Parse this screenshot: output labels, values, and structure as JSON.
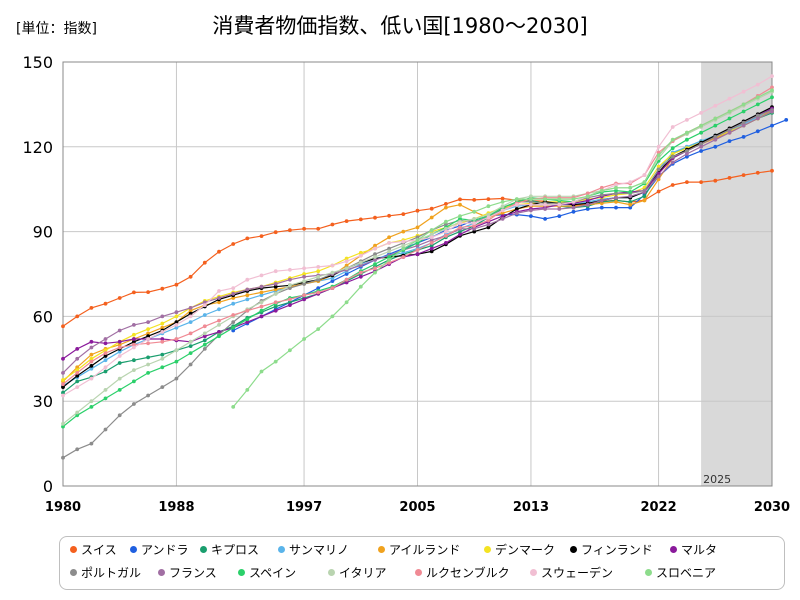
{
  "header": {
    "unit": "[単位：指数]",
    "title": "消費者物価指数、低い国[1980～2030]"
  },
  "chart_data": {
    "type": "line",
    "title": "消費者物価指数、低い国[1980～2030]",
    "xlabel": "",
    "ylabel": "[単位：指数]",
    "xlim": [
      1980,
      2030
    ],
    "ylim": [
      0,
      150
    ],
    "x_ticks": [
      "1980",
      "1988",
      "1997",
      "2005",
      "2013",
      "2022",
      "2030"
    ],
    "y_ticks": [
      "0",
      "30",
      "60",
      "90",
      "120",
      "150"
    ],
    "grid": true,
    "legend_position": "bottom",
    "forecast_region": {
      "from": 2025,
      "to": 2030,
      "label": "2025",
      "color": "#d9d9d9"
    },
    "series": [
      {
        "name": "スイス",
        "color": "#f4601e",
        "start": 1980,
        "values": [
          56.5,
          60,
          63,
          64.5,
          66.5,
          68.5,
          68.6,
          69.8,
          71.2,
          74,
          79,
          82.9,
          85.6,
          87.6,
          88.4,
          89.8,
          90.5,
          91,
          91,
          92.5,
          93.7,
          94.3,
          94.9,
          95.6,
          96.2,
          97.4,
          98.1,
          99.8,
          101.4,
          101.2,
          101.5,
          101.7,
          101.1,
          100.9,
          100.8,
          99.7,
          99.3,
          99.8,
          100.7,
          101.1,
          100.4,
          101.1,
          104.2,
          106.5,
          107.5,
          107.5,
          108,
          109,
          110,
          110.8,
          111.5
        ]
      },
      {
        "name": "アンドラ",
        "color": "#1f5fe0",
        "start": 1992,
        "values": [
          55,
          57.5,
          60,
          62.5,
          65,
          67.5,
          70,
          72.5,
          75,
          77.5,
          80,
          82,
          84,
          86,
          88,
          90.5,
          92,
          94,
          95.5,
          96,
          96,
          95.5,
          94.5,
          95.5,
          97,
          98,
          98.5,
          98.5,
          98.5,
          103,
          109.5,
          114,
          116.5,
          118.5,
          120,
          122,
          123.5,
          125.5,
          127.5,
          129.5
        ]
      },
      {
        "name": "キプロス",
        "color": "#1a9e6e",
        "start": 1980,
        "values": [
          33,
          37,
          38.5,
          40.5,
          43.5,
          44.5,
          45.5,
          46.5,
          48,
          49.5,
          51.5,
          54.5,
          56.5,
          59.5,
          61.5,
          63.5,
          65,
          66.5,
          68,
          70,
          72.5,
          75,
          77.5,
          80,
          82,
          83.5,
          85,
          88,
          90,
          92,
          95,
          98,
          100.5,
          101,
          100,
          99,
          98.5,
          99,
          100.5,
          101,
          100.5,
          102.5,
          110.5,
          117.5,
          120,
          122,
          123.5,
          125.5,
          127.5,
          130,
          132
        ]
      },
      {
        "name": "サンマリノ",
        "color": "#5ab4ea",
        "start": 1980,
        "values": [
          35.5,
          38.5,
          41.5,
          44.5,
          47.5,
          50,
          52,
          54,
          56,
          58,
          60.5,
          62.5,
          64.5,
          66,
          67.5,
          69,
          70.5,
          71.5,
          72.5,
          73.5,
          76,
          78.5,
          80.5,
          81.5,
          82.5,
          84,
          86,
          89,
          91,
          93,
          95,
          97.5,
          99,
          99.5,
          99.5,
          99.5,
          99.5,
          100.5,
          101.5,
          102,
          102,
          104,
          112,
          118,
          120,
          122,
          124,
          126,
          128,
          130.5,
          132.5
        ]
      },
      {
        "name": "アイルランド",
        "color": "#f0a21e",
        "start": 1980,
        "values": [
          37,
          42,
          46.5,
          48.5,
          50,
          52,
          54,
          56,
          58,
          62,
          64,
          65,
          66.5,
          67.5,
          68.5,
          69.5,
          70.5,
          71.5,
          72.5,
          74.5,
          78,
          81.5,
          85,
          88,
          90,
          91.5,
          95,
          98.5,
          99.5,
          97,
          95,
          96.5,
          98,
          99,
          99,
          99,
          99,
          99.5,
          100,
          100.5,
          99.5,
          101,
          108.5,
          116,
          119,
          121,
          123,
          125,
          127.5,
          130,
          133
        ]
      },
      {
        "name": "デンマーク",
        "color": "#f4e322",
        "start": 1980,
        "values": [
          37.5,
          41,
          45,
          48,
          51,
          53.5,
          55.5,
          57.5,
          60,
          63,
          65.5,
          67,
          68.5,
          69.5,
          70.5,
          72,
          73.5,
          75,
          76,
          78,
          80.5,
          82.5,
          84,
          86,
          87,
          88.5,
          90,
          91.5,
          93,
          94.5,
          96.5,
          98.5,
          99.5,
          100,
          100.5,
          100.5,
          100.5,
          101.5,
          102,
          103,
          103.5,
          105.5,
          113,
          117.5,
          119.5,
          121.5,
          123.5,
          125.5,
          127.5,
          130,
          132.5
        ]
      },
      {
        "name": "フィンランド",
        "color": "#000000",
        "start": 1980,
        "values": [
          35,
          39,
          42.5,
          46,
          48.5,
          51,
          53,
          55,
          58,
          61,
          63.5,
          66,
          67.5,
          69,
          70,
          70.5,
          71,
          72,
          73,
          74.5,
          77,
          79,
          80.5,
          81,
          81.5,
          82,
          83,
          85.5,
          88.5,
          90,
          91.5,
          95,
          98,
          99.5,
          100.5,
          100,
          99.5,
          100,
          101,
          102,
          102,
          104,
          111,
          116.5,
          119,
          121.5,
          124,
          126.5,
          129,
          131.5,
          134
        ]
      },
      {
        "name": "マルタ",
        "color": "#8a1a9b",
        "start": 1980,
        "values": [
          45,
          48.5,
          51,
          50.5,
          51,
          52,
          52,
          52,
          51.5,
          51,
          53,
          54.5,
          56,
          58,
          60,
          62,
          64,
          66,
          68,
          70,
          72,
          74,
          76,
          78.5,
          81,
          82,
          84,
          86,
          89,
          91.5,
          93.5,
          95.5,
          97,
          98,
          98.5,
          99.5,
          100,
          101,
          102.5,
          103.5,
          104,
          104.5,
          110.5,
          116,
          118.5,
          121,
          123.5,
          126,
          128.5,
          131,
          133.5
        ]
      },
      {
        "name": "ポルトガル",
        "color": "#8c8c8c",
        "start": 1980,
        "values": [
          10,
          13,
          15,
          20,
          25,
          29,
          32,
          35,
          38,
          43,
          48.5,
          53.5,
          58,
          62,
          65.5,
          68,
          70,
          71.5,
          73,
          75,
          77,
          79.5,
          82,
          84,
          86,
          88,
          90.5,
          92.5,
          94,
          93.5,
          95,
          98.5,
          100.5,
          100.5,
          100,
          100,
          100.5,
          102,
          103,
          103.5,
          103.5,
          104.5,
          112,
          116.5,
          118.5,
          121,
          123.5,
          126,
          128.5,
          131,
          133
        ]
      },
      {
        "name": "フランス",
        "color": "#a16fa3",
        "start": 1980,
        "values": [
          40,
          45,
          49,
          52,
          55,
          57,
          58,
          60,
          61.5,
          63,
          65,
          66.5,
          68,
          69.5,
          70.5,
          71.5,
          73,
          74,
          74.5,
          75,
          76.5,
          78,
          80,
          81.5,
          83.5,
          85,
          87,
          88.5,
          91,
          91,
          92.5,
          94.5,
          96.5,
          97.5,
          98,
          98,
          98.5,
          99.5,
          101,
          102,
          102.5,
          104,
          109.5,
          114.5,
          117.5,
          120,
          122.5,
          125,
          127.5,
          130,
          132.5
        ]
      },
      {
        "name": "スペイン",
        "color": "#2bd06a",
        "start": 1980,
        "values": [
          21,
          25,
          28,
          31,
          34,
          37,
          40,
          42,
          44,
          47,
          50,
          53,
          56,
          59,
          62,
          64.5,
          66.5,
          67.5,
          69,
          70.5,
          73,
          76,
          78.5,
          81,
          83.5,
          86,
          89,
          91.5,
          94.5,
          94,
          95.5,
          98.5,
          100.5,
          102,
          101.5,
          101,
          100.5,
          102.5,
          104,
          104.5,
          104,
          107,
          115,
          119.5,
          122.5,
          125,
          127.5,
          130,
          132.5,
          135,
          137.5
        ]
      },
      {
        "name": "イタリア",
        "color": "#b9d4b0",
        "start": 1980,
        "values": [
          22,
          26,
          30,
          34,
          38,
          41,
          43,
          45,
          48,
          51,
          54,
          57,
          60,
          62.5,
          65,
          68,
          71,
          72.5,
          74,
          75.5,
          77,
          79,
          81,
          83,
          85,
          87,
          89,
          91,
          93.5,
          94.5,
          96,
          99,
          101.5,
          102.5,
          102.5,
          102.5,
          102.5,
          103.5,
          104.5,
          105.5,
          105.5,
          107.5,
          116,
          122,
          124.5,
          127,
          129.5,
          132,
          134.5,
          137,
          139.5
        ]
      },
      {
        "name": "ルクセンブルク",
        "color": "#f08a94",
        "start": 1980,
        "values": [
          36,
          40,
          44,
          47,
          49,
          50,
          50.5,
          51,
          52,
          54,
          56.5,
          58.5,
          60.5,
          62,
          63.5,
          65,
          66,
          67.5,
          68.5,
          70,
          73,
          75.5,
          77,
          79,
          81,
          83.5,
          86,
          88.5,
          91.5,
          92,
          94,
          97.5,
          100,
          101.5,
          102,
          102,
          102,
          103.5,
          105.5,
          107,
          107,
          110,
          118,
          122,
          125,
          127.5,
          130,
          132.5,
          135,
          138,
          141
        ]
      },
      {
        "name": "スウェーデン",
        "color": "#f1bfd3",
        "start": 1980,
        "values": [
          32,
          35,
          38,
          42,
          46,
          49,
          52,
          54.5,
          57,
          60,
          64,
          69,
          70,
          73,
          74.5,
          76,
          76.5,
          77,
          77.5,
          78,
          79.5,
          81.5,
          84,
          86,
          86.5,
          87,
          88,
          90,
          93,
          93,
          95,
          97.5,
          99.5,
          99.5,
          99.5,
          99.5,
          100.5,
          102.5,
          104.5,
          106.5,
          107.5,
          110,
          120,
          127,
          129.5,
          132,
          134.5,
          137,
          139.5,
          142,
          145
        ]
      },
      {
        "name": "スロベニア",
        "color": "#8ddc8c",
        "start": 1992,
        "values": [
          28,
          34,
          40.5,
          44,
          48,
          52,
          55.5,
          60,
          65,
          70.5,
          75.5,
          80,
          84,
          87,
          90.5,
          93.5,
          95.5,
          97,
          99,
          100.5,
          101.5,
          101.5,
          101.5,
          101.5,
          101.5,
          102.5,
          104.5,
          105.5,
          105.5,
          107.5,
          117,
          122.5,
          125,
          127.5,
          130,
          132.5,
          135,
          137.5,
          140
        ]
      }
    ]
  }
}
